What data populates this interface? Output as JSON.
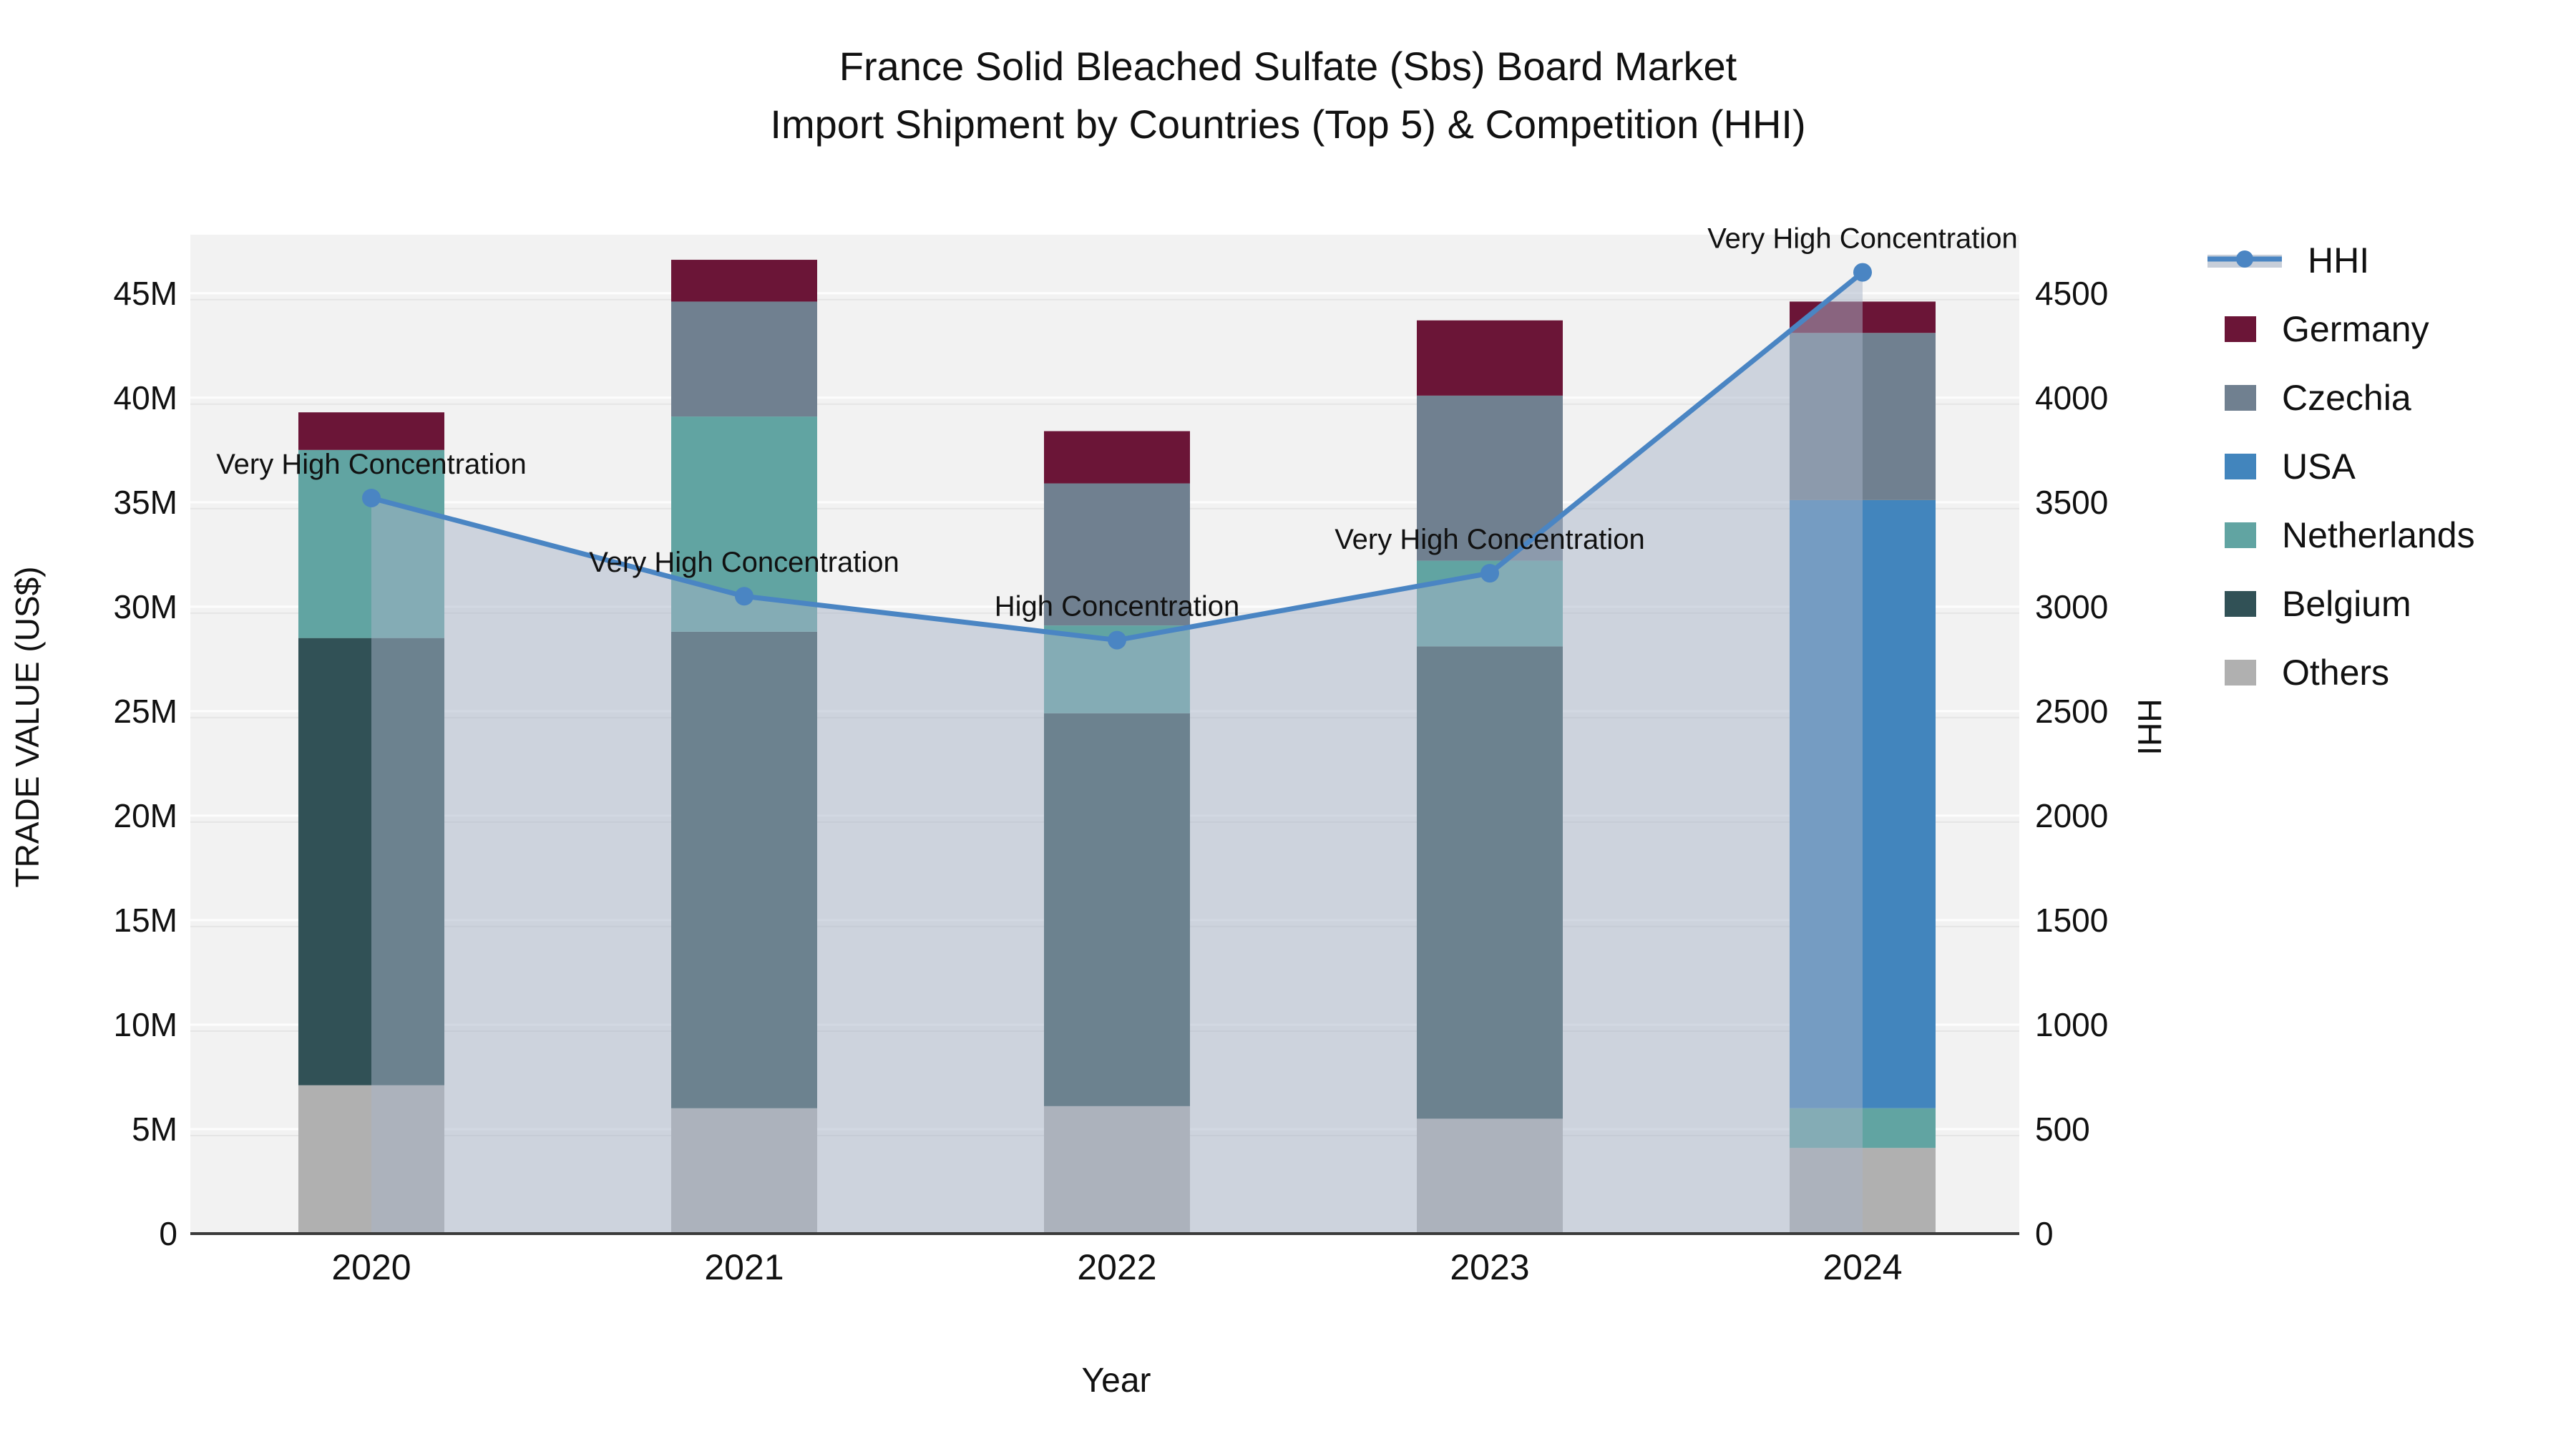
{
  "chart_data": {
    "type": "stacked-bar+line",
    "title_line1": "France Solid Bleached Sulfate (Sbs) Board Market",
    "title_line2": "Import Shipment by Countries (Top 5) & Competition (HHI)",
    "xlabel": "Year",
    "ylabel_left": "TRADE VALUE (US$)",
    "ylabel_right": "HHI",
    "categories": [
      "2020",
      "2021",
      "2022",
      "2023",
      "2024"
    ],
    "series": [
      {
        "name": "Others",
        "color": "#b0b0b0",
        "values": [
          7.1,
          6.0,
          6.1,
          5.5,
          4.1
        ]
      },
      {
        "name": "Belgium",
        "color": "#315156",
        "values": [
          21.4,
          22.8,
          18.8,
          22.6,
          0
        ]
      },
      {
        "name": "Netherlands",
        "color": "#61a4a2",
        "values": [
          9.0,
          10.3,
          4.2,
          4.1,
          1.9
        ]
      },
      {
        "name": "USA",
        "color": "#4285bd",
        "values": [
          0,
          0,
          0,
          0,
          29.1
        ]
      },
      {
        "name": "Czechia",
        "color": "#708090",
        "values": [
          0,
          5.5,
          6.8,
          7.9,
          8.0
        ]
      },
      {
        "name": "Germany",
        "color": "#6b1537",
        "values": [
          1.8,
          2.0,
          2.5,
          3.6,
          1.5
        ]
      }
    ],
    "bar_totals": [
      39.3,
      46.6,
      38.4,
      43.7,
      44.6
    ],
    "hhi": {
      "name": "HHI",
      "color": "#4a85c3",
      "area_fill": "rgba(168,180,200,0.5)",
      "values": [
        3520,
        3050,
        2840,
        3160,
        4600
      ]
    },
    "annotations": [
      "Very High Concentration",
      "Very High Concentration",
      "High Concentration",
      "Very High Concentration",
      "Very High Concentration"
    ],
    "yticks_left": {
      "values": [
        0,
        5,
        10,
        15,
        20,
        25,
        30,
        35,
        40,
        45
      ],
      "labels": [
        "0",
        "5M",
        "10M",
        "15M",
        "20M",
        "25M",
        "30M",
        "35M",
        "40M",
        "45M"
      ]
    },
    "yticks_right": {
      "values": [
        0,
        500,
        1000,
        1500,
        2000,
        2500,
        3000,
        3500,
        4000,
        4500
      ],
      "labels": [
        "0",
        "500",
        "1000",
        "1500",
        "2000",
        "2500",
        "3000",
        "3500",
        "4000",
        "4500"
      ]
    },
    "ylim_left": [
      0,
      47.8
    ],
    "ylim_right": [
      0,
      4780
    ],
    "units": "left axis values in millions of US$",
    "legend_position": "right",
    "plot_bg": "#f2f2f2",
    "grid": "on"
  },
  "legend": {
    "items": [
      {
        "label": "HHI",
        "type": "line",
        "color": "#4a85c3",
        "band": "#c7ced9"
      },
      {
        "label": "Germany",
        "type": "swatch",
        "color": "#6b1537"
      },
      {
        "label": "Czechia",
        "type": "swatch",
        "color": "#708090"
      },
      {
        "label": "USA",
        "type": "swatch",
        "color": "#4285bd"
      },
      {
        "label": "Netherlands",
        "type": "swatch",
        "color": "#61a4a2"
      },
      {
        "label": "Belgium",
        "type": "swatch",
        "color": "#315156"
      },
      {
        "label": "Others",
        "type": "swatch",
        "color": "#b0b0b0"
      }
    ]
  }
}
